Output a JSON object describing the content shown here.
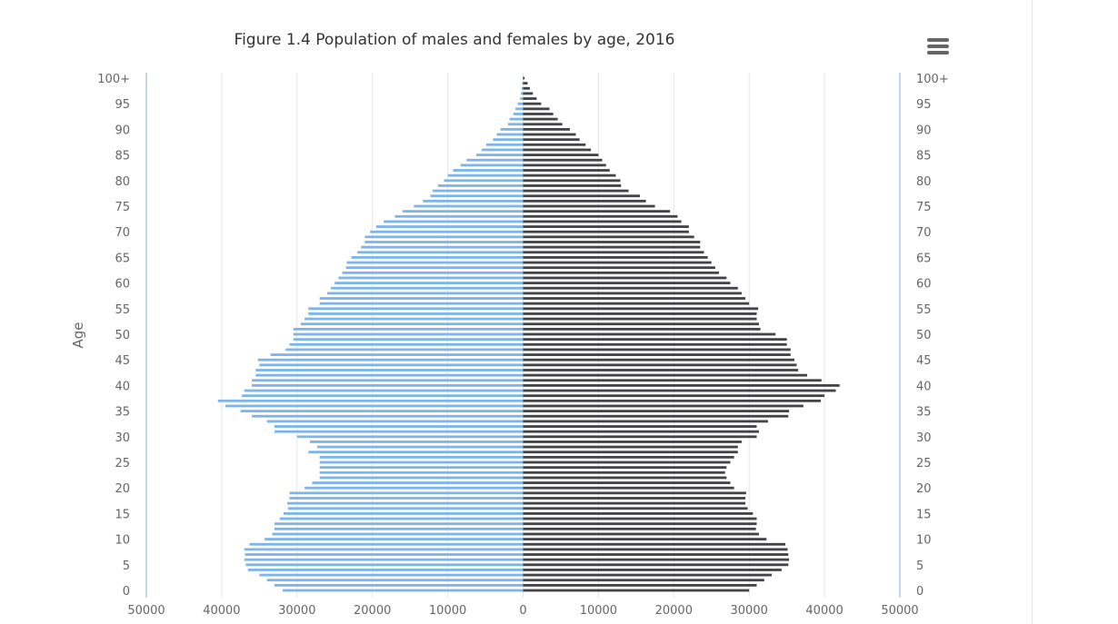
{
  "chart_data": {
    "type": "bar",
    "orientation": "horizontal",
    "layout": "population-pyramid",
    "title": "Figure 1.4 Population of males and females by age, 2016",
    "ylabel": "Age",
    "xlabel": "",
    "xlim": [
      -50000,
      50000
    ],
    "x_tick_values": [
      -50000,
      -40000,
      -30000,
      -20000,
      -10000,
      0,
      10000,
      20000,
      30000,
      40000,
      50000
    ],
    "x_tick_labels": [
      "50000",
      "40000",
      "30000",
      "20000",
      "10000",
      "0",
      "10000",
      "20000",
      "30000",
      "40000",
      "50000"
    ],
    "y_tick_labels": [
      "0",
      "5",
      "10",
      "15",
      "20",
      "25",
      "30",
      "35",
      "40",
      "45",
      "50",
      "55",
      "60",
      "65",
      "70",
      "75",
      "80",
      "85",
      "90",
      "95",
      "100+"
    ],
    "grid": "vertical",
    "categories": [
      "0",
      "1",
      "2",
      "3",
      "4",
      "5",
      "6",
      "7",
      "8",
      "9",
      "10",
      "11",
      "12",
      "13",
      "14",
      "15",
      "16",
      "17",
      "18",
      "19",
      "20",
      "21",
      "22",
      "23",
      "24",
      "25",
      "26",
      "27",
      "28",
      "29",
      "30",
      "31",
      "32",
      "33",
      "34",
      "35",
      "36",
      "37",
      "38",
      "39",
      "40",
      "41",
      "42",
      "43",
      "44",
      "45",
      "46",
      "47",
      "48",
      "49",
      "50",
      "51",
      "52",
      "53",
      "54",
      "55",
      "56",
      "57",
      "58",
      "59",
      "60",
      "61",
      "62",
      "63",
      "64",
      "65",
      "66",
      "67",
      "68",
      "69",
      "70",
      "71",
      "72",
      "73",
      "74",
      "75",
      "76",
      "77",
      "78",
      "79",
      "80",
      "81",
      "82",
      "83",
      "84",
      "85",
      "86",
      "87",
      "88",
      "89",
      "90",
      "91",
      "92",
      "93",
      "94",
      "95",
      "96",
      "97",
      "98",
      "99",
      "100+"
    ],
    "series": [
      {
        "color": "#7cb5ec",
        "side": "left",
        "values": [
          31900,
          33000,
          34000,
          35000,
          36500,
          36800,
          37000,
          36900,
          37000,
          36300,
          34300,
          33300,
          33000,
          33000,
          32300,
          31800,
          31200,
          31300,
          31000,
          31000,
          29000,
          28000,
          27000,
          27000,
          27000,
          27000,
          27000,
          28500,
          27300,
          28300,
          30000,
          33000,
          33000,
          34000,
          36000,
          37500,
          39500,
          40500,
          37300,
          37000,
          36000,
          36000,
          35500,
          35500,
          35000,
          35200,
          33500,
          31500,
          31000,
          30500,
          30500,
          30500,
          29500,
          29000,
          28500,
          28500,
          27000,
          27000,
          26000,
          25500,
          25000,
          24500,
          24000,
          23500,
          23400,
          22800,
          22000,
          21500,
          21000,
          21000,
          20300,
          19500,
          18500,
          17000,
          16000,
          14500,
          13300,
          12300,
          12000,
          11300,
          10500,
          10000,
          9300,
          8300,
          7500,
          6200,
          5500,
          4900,
          4000,
          3500,
          3000,
          2000,
          1800,
          1300,
          1000,
          700,
          400,
          300,
          200,
          100,
          50
        ]
      },
      {
        "color": "#434348",
        "side": "right",
        "values": [
          30000,
          31000,
          32000,
          33000,
          34300,
          35200,
          35300,
          35200,
          35100,
          34800,
          32300,
          31300,
          30900,
          31000,
          31000,
          30500,
          29800,
          29500,
          29500,
          29600,
          28000,
          27500,
          27000,
          26800,
          27000,
          27500,
          28000,
          28500,
          28500,
          29000,
          31000,
          31300,
          31000,
          32500,
          35200,
          35300,
          37200,
          39500,
          40000,
          41500,
          42000,
          39600,
          37700,
          36500,
          36300,
          36000,
          35500,
          35500,
          35000,
          35000,
          33500,
          31500,
          31300,
          31000,
          31000,
          31200,
          30000,
          29500,
          29000,
          28500,
          27500,
          27000,
          26000,
          25500,
          25000,
          24500,
          24000,
          23500,
          23500,
          22700,
          22000,
          22000,
          21000,
          20500,
          19500,
          17500,
          16300,
          15500,
          14000,
          13000,
          12900,
          12300,
          11500,
          11000,
          10500,
          10000,
          9000,
          8300,
          7500,
          7000,
          6200,
          5200,
          4600,
          4000,
          3500,
          2400,
          1800,
          1300,
          900,
          600,
          200
        ]
      }
    ]
  }
}
